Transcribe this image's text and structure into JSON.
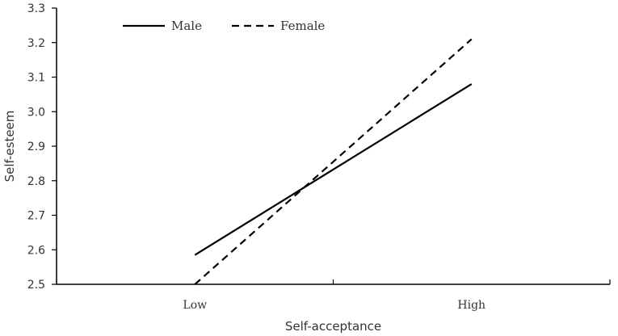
{
  "chart_data": {
    "type": "line",
    "categories": [
      "Low",
      "High"
    ],
    "series": [
      {
        "name": "Male",
        "values": [
          2.585,
          3.08
        ],
        "line_style": "solid",
        "color": "#000000"
      },
      {
        "name": "Female",
        "values": [
          2.5,
          3.21
        ],
        "line_style": "dashed",
        "color": "#000000"
      }
    ],
    "xlabel": "Self-acceptance",
    "ylabel": "Self-esteem",
    "ylim": [
      2.5,
      3.3
    ],
    "yticks": [
      "2.5",
      "2.6",
      "2.7",
      "2.8",
      "2.9",
      "3.0",
      "3.1",
      "3.2",
      "3.3"
    ],
    "grid": false,
    "legend_position": "top-left"
  }
}
